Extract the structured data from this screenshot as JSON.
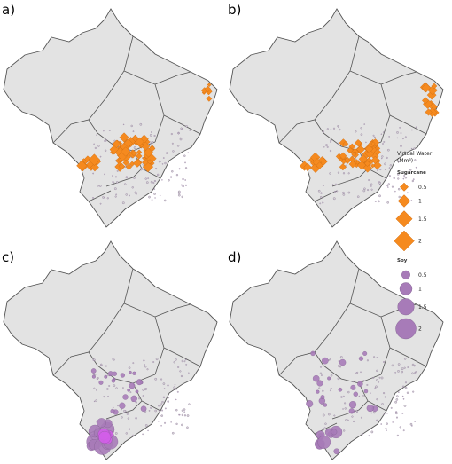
{
  "panels": [
    {
      "label": "a)"
    },
    {
      "label": "b)"
    },
    {
      "label": "c)"
    },
    {
      "label": "d)"
    }
  ],
  "legend": {
    "title": [
      "Virtual Water",
      "(Mm³)"
    ],
    "groups": [
      {
        "name": "Sugarcane",
        "sizes": [
          0.5,
          1,
          1.5,
          2
        ]
      },
      {
        "name": "Soy",
        "sizes": [
          0.5,
          1,
          1.5,
          2
        ]
      }
    ]
  }
}
